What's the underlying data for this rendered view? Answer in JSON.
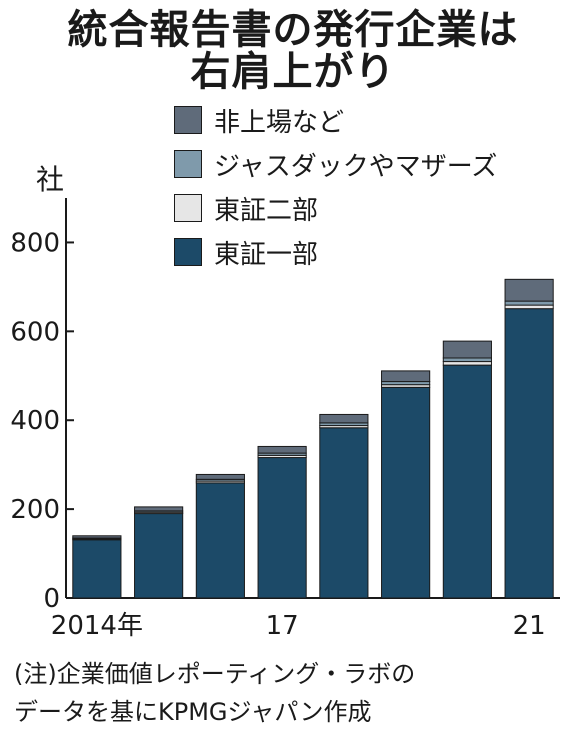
{
  "title_line1": "統合報告書の発行企業は",
  "title_line2": "右肩上がり",
  "unit_label": "社",
  "legend": [
    {
      "label": "非上場など",
      "color": "#5f6b7a"
    },
    {
      "label": "ジャスダックやマザーズ",
      "color": "#7f9aab"
    },
    {
      "label": "東証二部",
      "color": "#e6e6e6"
    },
    {
      "label": "東証一部",
      "color": "#1c4a68"
    }
  ],
  "note_line1": "(注)企業価値レポーティング・ラボの",
  "note_line2": "データを基にKPMGジャパン作成",
  "chart_data": {
    "type": "bar",
    "stacked": true,
    "categories": [
      "2014年",
      "",
      "",
      "17",
      "",
      "",
      "",
      "21"
    ],
    "series": [
      {
        "name": "東証一部",
        "values": [
          131,
          190,
          259,
          316,
          383,
          474,
          524,
          651
        ],
        "color": "#1c4a68"
      },
      {
        "name": "東証二部",
        "values": [
          2,
          3,
          4,
          5,
          5,
          6,
          8,
          8
        ],
        "color": "#e6e6e6"
      },
      {
        "name": "ジャスダックやマザーズ",
        "values": [
          2,
          3,
          4,
          5,
          6,
          7,
          8,
          9
        ],
        "color": "#7f9aab"
      },
      {
        "name": "非上場など",
        "values": [
          5,
          9,
          11,
          15,
          19,
          24,
          38,
          49
        ],
        "color": "#5f6b7a"
      }
    ],
    "yticks": [
      0,
      200,
      400,
      600,
      800
    ],
    "ylim": [
      0,
      900
    ],
    "grid": false
  }
}
